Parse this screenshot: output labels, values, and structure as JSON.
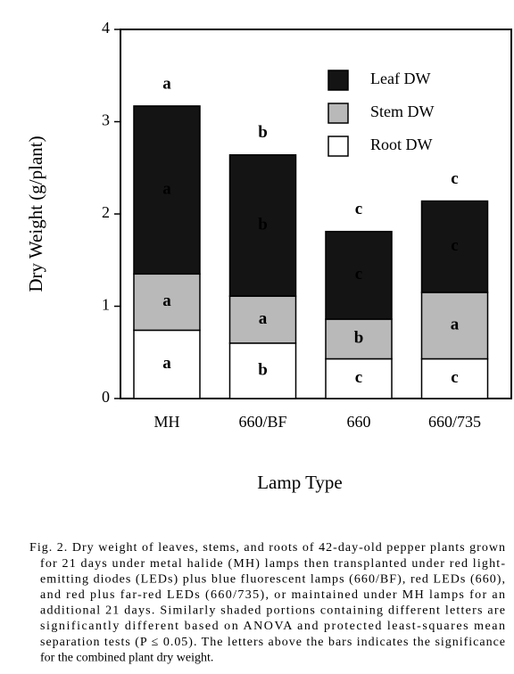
{
  "chart_data": {
    "type": "stacked_bar",
    "x_label": "Lamp Type",
    "y_label": "Dry Weight (g/plant)",
    "categories": [
      "MH",
      "660/BF",
      "660",
      "660/735"
    ],
    "series": [
      {
        "name": "Root DW",
        "color": "#ffffff",
        "values": [
          0.74,
          0.6,
          0.43,
          0.43
        ],
        "letters": [
          "a",
          "b",
          "c",
          "c"
        ]
      },
      {
        "name": "Stem DW",
        "color": "#b9b9b9",
        "values": [
          0.61,
          0.51,
          0.43,
          0.72
        ],
        "letters": [
          "a",
          "a",
          "b",
          "a"
        ]
      },
      {
        "name": "Leaf DW",
        "color": "#141414",
        "values": [
          1.82,
          1.53,
          0.95,
          0.99
        ],
        "letters": [
          "a",
          "b",
          "c",
          "c"
        ]
      }
    ],
    "total_letters": [
      "a",
      "b",
      "c",
      "c"
    ],
    "ylim": [
      0,
      4
    ],
    "yticks": [
      0,
      1,
      2,
      3,
      4
    ],
    "legend": "upper-right"
  },
  "caption": [
    "Fig. 2. Dry weight of leaves, stems, and roots of 42-day-old pepper plants grown",
    "for 21 days under metal halide (MH) lamps then transplanted under red light-",
    "emitting diodes (LEDs) plus blue fluorescent lamps (660/BF), red LEDs (660),",
    "and red plus far-red LEDs (660/735), or maintained under MH lamps for an",
    "additional 21 days. Similarly shaded portions containing different letters are",
    "significantly different based on ANOVA and protected least-squares mean",
    "separation tests (P ≤ 0.05). The letters above the bars indicates the significance",
    "for the combined plant dry weight."
  ]
}
